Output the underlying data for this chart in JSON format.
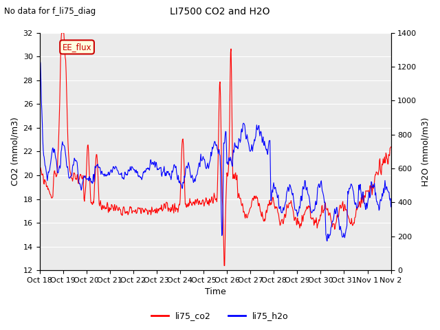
{
  "title": "LI7500 CO2 and H2O",
  "suptitle": "No data for f_li75_diag",
  "xlabel": "Time",
  "ylabel_left": "CO2 (mmol/m3)",
  "ylabel_right": "H2O (mmol/m3)",
  "ylim_left": [
    12,
    32
  ],
  "ylim_right": [
    0,
    1400
  ],
  "yticks_left": [
    12,
    14,
    16,
    18,
    20,
    22,
    24,
    26,
    28,
    30,
    32
  ],
  "yticks_right": [
    0,
    200,
    400,
    600,
    800,
    1000,
    1200,
    1400
  ],
  "xtick_labels": [
    "Oct 18",
    "Oct 19",
    "Oct 20",
    "Oct 21",
    "Oct 22",
    "Oct 23",
    "Oct 24",
    "Oct 25",
    "Oct 26",
    "Oct 27",
    "Oct 28",
    "Oct 29",
    "Oct 30",
    "Oct 31",
    "Nov 1",
    "Nov 2"
  ],
  "legend_labels": [
    "li75_co2",
    "li75_h2o"
  ],
  "legend_colors": [
    "red",
    "blue"
  ],
  "annotation_text": "EE_flux",
  "annotation_color": "#cc0000",
  "plot_bg_color": "#ebebeb",
  "grid_color": "white",
  "co2_color": "red",
  "h2o_color": "blue",
  "co2_linewidth": 0.8,
  "h2o_linewidth": 0.8,
  "figsize": [
    6.4,
    4.8
  ],
  "dpi": 100
}
